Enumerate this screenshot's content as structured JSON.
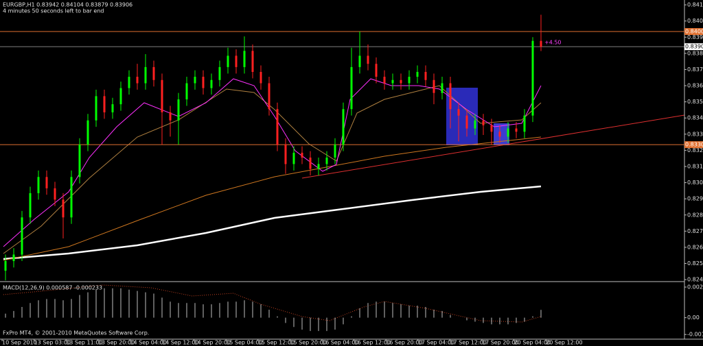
{
  "chart_data": {
    "type": "candlestick",
    "title": "EURGBP,H1  0.83942 0.84104 0.83879 0.83906",
    "subtitle": "4 minutes 50 seconds left to bar end",
    "footer": "FxPro MT4, © 2001-2010 MetaQuotes Software Corp.",
    "annotation": "+4.50",
    "colors": {
      "up": "#00ff00",
      "down": "#ff2020"
    },
    "open": [
      0.8252,
      0.8258,
      0.8262,
      0.8285,
      0.83,
      0.831,
      0.8303,
      0.8296,
      0.8285,
      0.831,
      0.833,
      0.8345,
      0.836,
      0.835,
      0.8355,
      0.8365,
      0.8372,
      0.8368,
      0.8378,
      0.837,
      0.835,
      0.8345,
      0.8358,
      0.8368,
      0.8372,
      0.8365,
      0.837,
      0.8378,
      0.8385,
      0.8378,
      0.8388,
      0.8375,
      0.8368,
      0.8352,
      0.833,
      0.8318,
      0.8325,
      0.8322,
      0.8315,
      0.8318,
      0.8322,
      0.833,
      0.8352,
      0.8378,
      0.8385,
      0.838,
      0.8372,
      0.8368,
      0.837,
      0.8368,
      0.8372,
      0.8375,
      0.837,
      0.8362,
      0.8368,
      0.8352,
      0.8348,
      0.834,
      0.8345,
      0.8342,
      0.8338,
      0.8335,
      0.834,
      0.8338,
      0.8348,
      0.83942
    ],
    "high": [
      0.8262,
      0.8266,
      0.8289,
      0.8304,
      0.8314,
      0.8314,
      0.8307,
      0.83,
      0.8314,
      0.8334,
      0.8349,
      0.8364,
      0.8364,
      0.8359,
      0.8369,
      0.8376,
      0.838,
      0.8386,
      0.8382,
      0.8374,
      0.8354,
      0.8362,
      0.8372,
      0.8376,
      0.8376,
      0.8374,
      0.8382,
      0.839,
      0.8389,
      0.8397,
      0.8392,
      0.8379,
      0.8372,
      0.8356,
      0.8334,
      0.8329,
      0.8329,
      0.8326,
      0.8322,
      0.8326,
      0.8334,
      0.8356,
      0.839,
      0.84,
      0.8392,
      0.8384,
      0.8376,
      0.8374,
      0.8374,
      0.8376,
      0.8379,
      0.8379,
      0.8374,
      0.8372,
      0.8372,
      0.8356,
      0.8352,
      0.8349,
      0.8349,
      0.8346,
      0.8342,
      0.8344,
      0.8344,
      0.8352,
      0.83965,
      0.84104
    ],
    "low": [
      0.8246,
      0.8254,
      0.8258,
      0.8281,
      0.8296,
      0.8299,
      0.8292,
      0.8272,
      0.8281,
      0.8306,
      0.8326,
      0.8341,
      0.8346,
      0.8346,
      0.8351,
      0.8361,
      0.8364,
      0.8364,
      0.8366,
      0.833,
      0.8335,
      0.833,
      0.8354,
      0.8364,
      0.8361,
      0.8361,
      0.8366,
      0.8374,
      0.8374,
      0.8374,
      0.8371,
      0.8364,
      0.8348,
      0.8326,
      0.8312,
      0.8314,
      0.8318,
      0.8311,
      0.8311,
      0.8314,
      0.8318,
      0.8326,
      0.8348,
      0.8374,
      0.8376,
      0.8368,
      0.8364,
      0.8364,
      0.8364,
      0.8364,
      0.8368,
      0.8366,
      0.8355,
      0.8358,
      0.834,
      0.8332,
      0.8335,
      0.8336,
      0.8336,
      0.833,
      0.8331,
      0.8331,
      0.8334,
      0.8334,
      0.8344,
      0.83879
    ],
    "close": [
      0.8258,
      0.8262,
      0.8285,
      0.83,
      0.831,
      0.8303,
      0.8296,
      0.8285,
      0.831,
      0.833,
      0.8345,
      0.836,
      0.835,
      0.8355,
      0.8365,
      0.8372,
      0.8368,
      0.8378,
      0.837,
      0.835,
      0.8345,
      0.8358,
      0.8368,
      0.8372,
      0.8365,
      0.837,
      0.8378,
      0.8385,
      0.8378,
      0.8388,
      0.8375,
      0.8368,
      0.8352,
      0.833,
      0.8318,
      0.8325,
      0.8322,
      0.8315,
      0.8318,
      0.8322,
      0.833,
      0.8352,
      0.8378,
      0.8385,
      0.838,
      0.8372,
      0.8368,
      0.837,
      0.8368,
      0.8372,
      0.8375,
      0.837,
      0.8362,
      0.8368,
      0.8352,
      0.8348,
      0.834,
      0.8345,
      0.8342,
      0.8338,
      0.8335,
      0.834,
      0.8338,
      0.8348,
      0.83942,
      0.83906
    ],
    "ylim": [
      0.82457,
      0.84195
    ],
    "yticks": [
      0.84165,
      0.84065,
      0.83965,
      0.83865,
      0.83765,
      0.83665,
      0.83565,
      0.83465,
      0.83365,
      0.83265,
      0.83165,
      0.83065,
      0.82965,
      0.82865,
      0.82765,
      0.82665,
      0.82565,
      0.82465
    ],
    "levels": [
      {
        "value": 0.84,
        "label": "0.84000",
        "color": "#e07030"
      },
      {
        "value": 0.83906,
        "label": "0.83906",
        "color": "#ffffff"
      },
      {
        "value": 0.833,
        "label": "0.83300",
        "color": "#e07030"
      }
    ],
    "x_labels": [
      "10 Sep 2010",
      "13 Sep 03:00",
      "13 Sep 11:00",
      "13 Sep 20:00",
      "14 Sep 04:00",
      "14 Sep 12:00",
      "14 Sep 20:00",
      "15 Sep 04:00",
      "15 Sep 12:00",
      "15 Sep 20:00",
      "16 Sep 04:00",
      "16 Sep 12:00",
      "16 Sep 20:00",
      "17 Sep 04:00",
      "17 Sep 12:00",
      "17 Sep 20:00",
      "20 Sep 04:00",
      "20 Sep 12:00"
    ],
    "macd": {
      "label": "MACD(12,26,9) 0.000587 -0.000233",
      "color": "#c0c0c0",
      "values": [
        0.0003,
        0.0005,
        0.0008,
        0.0011,
        0.0013,
        0.0014,
        0.0014,
        0.0013,
        0.0014,
        0.0017,
        0.0019,
        0.0021,
        0.0022,
        0.0022,
        0.0022,
        0.0021,
        0.002,
        0.0019,
        0.0018,
        0.0015,
        0.0012,
        0.0011,
        0.0011,
        0.0011,
        0.001,
        0.001,
        0.0011,
        0.0012,
        0.0012,
        0.0013,
        0.0012,
        0.001,
        0.0006,
        0.0001,
        -0.0004,
        -0.0007,
        -0.0009,
        -0.001,
        -0.001,
        -0.001,
        -0.0009,
        -0.0005,
        0.0001,
        0.0007,
        0.0011,
        0.0012,
        0.0012,
        0.0011,
        0.001,
        0.0009,
        0.0009,
        0.0008,
        0.0006,
        0.0005,
        0.0002,
        0.0,
        -0.0002,
        -0.0003,
        -0.0004,
        -0.0005,
        -0.0005,
        -0.0005,
        -0.0004,
        -0.0003,
        0.0001,
        0.000587
      ],
      "ylim": [
        -0.00161,
        0.00265
      ],
      "yticks": [
        0.00229,
        {
          "value": 0,
          "label": "0.00"
        },
        -0.00126
      ]
    }
  }
}
